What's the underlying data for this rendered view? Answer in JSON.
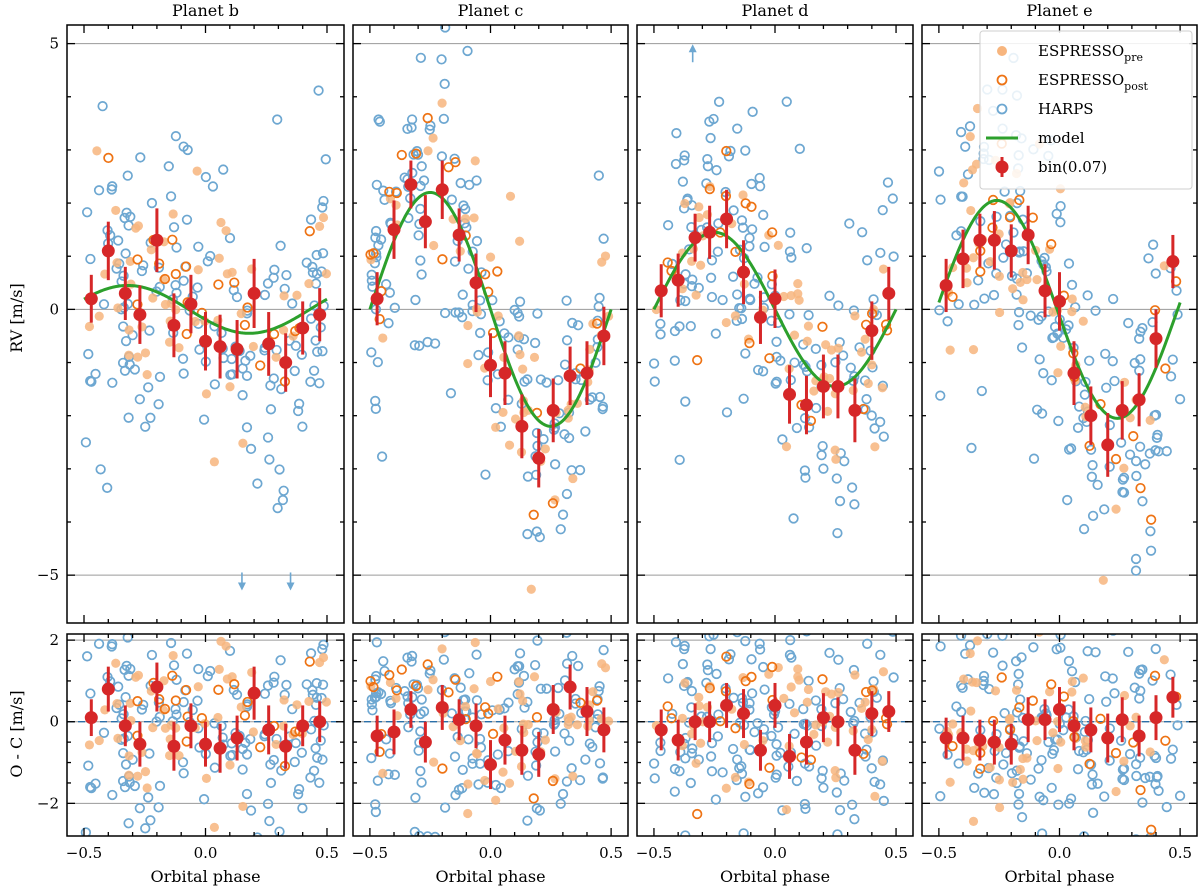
{
  "chart_data": {
    "type": "scatter",
    "xlabel": "Orbital phase",
    "ylabel_top": "RV [m/s]",
    "ylabel_bottom": "O - C [m/s]",
    "xlim": [
      -0.57,
      0.57
    ],
    "ylim_top": [
      -5.9,
      5.35
    ],
    "ylim_bottom": [
      -2.8,
      2.15
    ],
    "xticks": [
      -0.5,
      0.0,
      0.5
    ],
    "xtick_labels": [
      "−0.5",
      "0.0",
      "0.5"
    ],
    "yticks_top": [
      -5,
      0,
      5
    ],
    "ytick_labels_top": [
      "−5",
      "0",
      "5"
    ],
    "yticks_bottom": [
      -2,
      0,
      2
    ],
    "ytick_labels_bottom": [
      "−2",
      "0",
      "2"
    ],
    "hlines_top": [
      -5,
      0,
      5
    ],
    "hlines_bottom": [
      -2,
      0,
      2
    ],
    "colors": {
      "espresso_pre": "#f7b57e",
      "espresso_post": "#ee7314",
      "harps": "#6da7d1",
      "model": "#2ca02c",
      "bin": "#d62728",
      "grid": "#9a9a9a"
    },
    "legend": {
      "position": "top-right",
      "items": [
        {
          "name": "espresso_pre",
          "label": "ESPRESSO",
          "sub": "pre"
        },
        {
          "name": "espresso_post",
          "label": "ESPRESSO",
          "sub": "post"
        },
        {
          "name": "harps",
          "label": "HARPS",
          "sub": ""
        },
        {
          "name": "model",
          "label": "model",
          "sub": ""
        },
        {
          "name": "bin",
          "label": "bin(0.07)",
          "sub": ""
        }
      ]
    },
    "panels": [
      {
        "title": "Planet b",
        "model": {
          "amplitude": 0.45,
          "phase_of_peak": -0.32
        },
        "bins": {
          "x": [
            -0.47,
            -0.4,
            -0.33,
            -0.27,
            -0.2,
            -0.13,
            -0.06,
            0.0,
            0.06,
            0.13,
            0.2,
            0.26,
            0.33,
            0.4,
            0.47
          ],
          "y": [
            0.2,
            1.1,
            0.3,
            -0.1,
            1.3,
            -0.3,
            0.1,
            -0.6,
            -0.7,
            -0.75,
            0.3,
            -0.65,
            -1.0,
            -0.35,
            -0.1
          ],
          "err": [
            0.45,
            0.55,
            0.5,
            0.55,
            0.6,
            0.6,
            0.55,
            0.55,
            0.6,
            0.55,
            0.65,
            0.6,
            0.55,
            0.5,
            0.5
          ]
        },
        "residual_bins": {
          "y": [
            0.1,
            0.8,
            -0.1,
            -0.55,
            0.85,
            -0.6,
            -0.1,
            -0.55,
            -0.65,
            -0.4,
            0.7,
            -0.2,
            -0.6,
            -0.1,
            0.0
          ],
          "err": [
            0.45,
            0.55,
            0.5,
            0.55,
            0.6,
            0.6,
            0.55,
            0.55,
            0.6,
            0.55,
            0.65,
            0.6,
            0.55,
            0.5,
            0.5
          ]
        },
        "arrows": [
          {
            "x": 0.15,
            "direction": "down"
          },
          {
            "x": 0.35,
            "direction": "down"
          }
        ]
      },
      {
        "title": "Planet c",
        "model": {
          "amplitude": 2.2,
          "phase_of_peak": -0.25
        },
        "bins": {
          "x": [
            -0.47,
            -0.4,
            -0.33,
            -0.27,
            -0.2,
            -0.13,
            -0.06,
            0.0,
            0.06,
            0.13,
            0.2,
            0.26,
            0.33,
            0.4,
            0.47
          ],
          "y": [
            0.2,
            1.5,
            2.35,
            1.65,
            2.25,
            1.4,
            0.5,
            -1.05,
            -1.2,
            -2.2,
            -2.8,
            -1.9,
            -1.25,
            -1.2,
            -0.5
          ],
          "err": [
            0.5,
            0.55,
            0.45,
            0.5,
            0.55,
            0.5,
            0.55,
            0.6,
            0.6,
            0.6,
            0.55,
            0.6,
            0.55,
            0.6,
            0.55
          ]
        },
        "residual_bins": {
          "y": [
            -0.35,
            -0.25,
            0.3,
            -0.5,
            0.35,
            0.05,
            -0.1,
            -1.05,
            -0.45,
            -0.7,
            -0.8,
            0.3,
            0.85,
            0.25,
            -0.2
          ],
          "err": [
            0.5,
            0.55,
            0.45,
            0.5,
            0.55,
            0.5,
            0.55,
            0.6,
            0.6,
            0.6,
            0.55,
            0.6,
            0.55,
            0.6,
            0.55
          ]
        },
        "arrows": []
      },
      {
        "title": "Planet d",
        "model": {
          "amplitude": 1.45,
          "phase_of_peak": -0.25
        },
        "bins": {
          "x": [
            -0.47,
            -0.4,
            -0.33,
            -0.27,
            -0.2,
            -0.13,
            -0.06,
            0.0,
            0.06,
            0.13,
            0.2,
            0.26,
            0.33,
            0.4,
            0.47
          ],
          "y": [
            0.35,
            0.55,
            1.35,
            1.45,
            1.7,
            0.7,
            -0.15,
            0.2,
            -1.6,
            -1.8,
            -1.45,
            -1.45,
            -1.9,
            -0.4,
            0.3
          ],
          "err": [
            0.5,
            0.5,
            0.45,
            0.5,
            0.55,
            0.6,
            0.5,
            0.55,
            0.55,
            0.55,
            0.6,
            0.6,
            0.6,
            0.55,
            0.5
          ]
        },
        "residual_bins": {
          "y": [
            -0.2,
            -0.45,
            0.0,
            0.0,
            0.4,
            0.2,
            -0.7,
            0.4,
            -0.85,
            -0.5,
            0.1,
            0.0,
            -0.7,
            0.2,
            0.25
          ],
          "err": [
            0.5,
            0.5,
            0.45,
            0.5,
            0.55,
            0.6,
            0.5,
            0.55,
            0.55,
            0.55,
            0.6,
            0.6,
            0.6,
            0.55,
            0.5
          ]
        },
        "arrows": [
          {
            "x": -0.34,
            "direction": "up"
          }
        ]
      },
      {
        "title": "Planet e",
        "model": {
          "amplitude": 2.05,
          "phase_of_peak": -0.26
        },
        "bins": {
          "x": [
            -0.47,
            -0.4,
            -0.33,
            -0.27,
            -0.2,
            -0.13,
            -0.06,
            0.0,
            0.06,
            0.13,
            0.2,
            0.26,
            0.33,
            0.4,
            0.47
          ],
          "y": [
            0.45,
            0.95,
            1.3,
            1.3,
            1.1,
            1.4,
            0.35,
            0.15,
            -1.2,
            -2.0,
            -2.55,
            -1.9,
            -1.7,
            -0.55,
            0.9
          ],
          "err": [
            0.5,
            0.55,
            0.5,
            0.55,
            0.5,
            0.55,
            0.5,
            0.55,
            0.6,
            0.55,
            0.6,
            0.55,
            0.5,
            0.55,
            0.5
          ]
        },
        "residual_bins": {
          "y": [
            -0.4,
            -0.4,
            -0.45,
            -0.5,
            -0.55,
            0.05,
            0.05,
            0.3,
            -0.1,
            -0.2,
            -0.4,
            0.05,
            -0.35,
            0.1,
            0.6
          ],
          "err": [
            0.5,
            0.55,
            0.5,
            0.55,
            0.5,
            0.55,
            0.5,
            0.55,
            0.6,
            0.55,
            0.6,
            0.55,
            0.5,
            0.55,
            0.5
          ]
        },
        "arrows": []
      }
    ]
  }
}
